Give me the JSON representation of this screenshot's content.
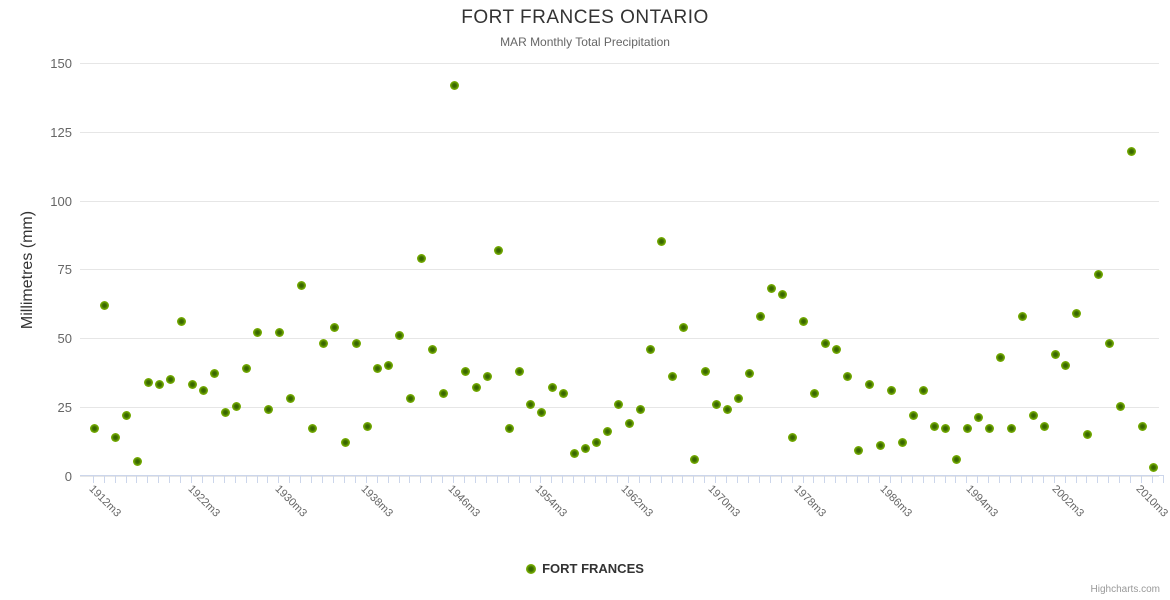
{
  "chart": {
    "title": "FORT FRANCES ONTARIO",
    "subtitle": "MAR Monthly Total Precipitation"
  },
  "y_axis": {
    "title": "Millimetres (mm)",
    "tick_labels": [
      "0",
      "25",
      "50",
      "75",
      "100",
      "125",
      "150"
    ]
  },
  "x_axis": {
    "tick_labels": [
      "1912m3",
      "1922m3",
      "1930m3",
      "1938m3",
      "1946m3",
      "1954m3",
      "1962m3",
      "1970m3",
      "1978m3",
      "1986m3",
      "1994m3",
      "2002m3",
      "2010m3"
    ]
  },
  "legend": {
    "label": "FORT FRANCES",
    "marker_color": "#7db500"
  },
  "credits": {
    "label": "Highcharts.com"
  },
  "colors": {
    "point_outer": "#7db500",
    "point_inner": "#3f7000",
    "gridline": "#e6e6e6",
    "axis_line": "#ccd6eb",
    "title_text": "#333333",
    "muted_text": "#666666",
    "credits_text": "#999999"
  },
  "chart_data": {
    "type": "scatter",
    "title": "FORT FRANCES ONTARIO",
    "subtitle": "MAR Monthly Total Precipitation",
    "xlabel": "",
    "ylabel": "Millimetres (mm)",
    "ylim": [
      0,
      150
    ],
    "y_ticks": [
      0,
      25,
      50,
      75,
      100,
      125,
      150
    ],
    "x_tick_labels": [
      "1912m3",
      "1922m3",
      "1930m3",
      "1938m3",
      "1946m3",
      "1954m3",
      "1962m3",
      "1970m3",
      "1978m3",
      "1986m3",
      "1994m3",
      "2002m3",
      "2010m3"
    ],
    "grid": "horizontal",
    "legend_position": "bottom",
    "series": [
      {
        "name": "FORT FRANCES",
        "unit": "mm",
        "points": [
          [
            1912,
            17
          ],
          [
            1913,
            62
          ],
          [
            1914,
            14
          ],
          [
            1915,
            22
          ],
          [
            1916,
            5
          ],
          [
            1917,
            34
          ],
          [
            1918,
            33
          ],
          [
            1919,
            35
          ],
          [
            1920,
            56
          ],
          [
            1921,
            33
          ],
          [
            1922,
            31
          ],
          [
            1923,
            37
          ],
          [
            1924,
            23
          ],
          [
            1925,
            25
          ],
          [
            1926,
            39
          ],
          [
            1927,
            52
          ],
          [
            1928,
            24
          ],
          [
            1929,
            52
          ],
          [
            1930,
            28
          ],
          [
            1931,
            69
          ],
          [
            1932,
            17
          ],
          [
            1933,
            48
          ],
          [
            1934,
            54
          ],
          [
            1935,
            12
          ],
          [
            1936,
            48
          ],
          [
            1937,
            18
          ],
          [
            1938,
            39
          ],
          [
            1939,
            40
          ],
          [
            1940,
            51
          ],
          [
            1941,
            28
          ],
          [
            1942,
            79
          ],
          [
            1943,
            46
          ],
          [
            1944,
            30
          ],
          [
            1945,
            142
          ],
          [
            1946,
            38
          ],
          [
            1947,
            32
          ],
          [
            1948,
            36
          ],
          [
            1949,
            82
          ],
          [
            1950,
            17
          ],
          [
            1951,
            38
          ],
          [
            1952,
            26
          ],
          [
            1953,
            23
          ],
          [
            1954,
            32
          ],
          [
            1955,
            30
          ],
          [
            1956,
            8
          ],
          [
            1957,
            10
          ],
          [
            1958,
            12
          ],
          [
            1959,
            16
          ],
          [
            1960,
            26
          ],
          [
            1961,
            19
          ],
          [
            1962,
            24
          ],
          [
            1963,
            46
          ],
          [
            1964,
            85
          ],
          [
            1965,
            36
          ],
          [
            1966,
            54
          ],
          [
            1967,
            6
          ],
          [
            1968,
            38
          ],
          [
            1969,
            26
          ],
          [
            1970,
            24
          ],
          [
            1971,
            28
          ],
          [
            1972,
            37
          ],
          [
            1973,
            58
          ],
          [
            1974,
            68
          ],
          [
            1975,
            66
          ],
          [
            1976,
            14
          ],
          [
            1977,
            56
          ],
          [
            1978,
            30
          ],
          [
            1979,
            48
          ],
          [
            1980,
            46
          ],
          [
            1981,
            36
          ],
          [
            1982,
            9
          ],
          [
            1983,
            33
          ],
          [
            1984,
            11
          ],
          [
            1985,
            31
          ],
          [
            1986,
            12
          ],
          [
            1987,
            22
          ],
          [
            1988,
            31
          ],
          [
            1989,
            18
          ],
          [
            1990,
            17
          ],
          [
            1991,
            6
          ],
          [
            1992,
            17
          ],
          [
            1993,
            21
          ],
          [
            1994,
            17
          ],
          [
            1995,
            43
          ],
          [
            1996,
            17
          ],
          [
            1997,
            58
          ],
          [
            1998,
            22
          ],
          [
            1999,
            18
          ],
          [
            2000,
            44
          ],
          [
            2001,
            40
          ],
          [
            2002,
            59
          ],
          [
            2003,
            15
          ],
          [
            2004,
            73
          ],
          [
            2005,
            48
          ],
          [
            2006,
            25
          ],
          [
            2007,
            118
          ],
          [
            2008,
            18
          ],
          [
            2009,
            3
          ]
        ]
      }
    ]
  }
}
